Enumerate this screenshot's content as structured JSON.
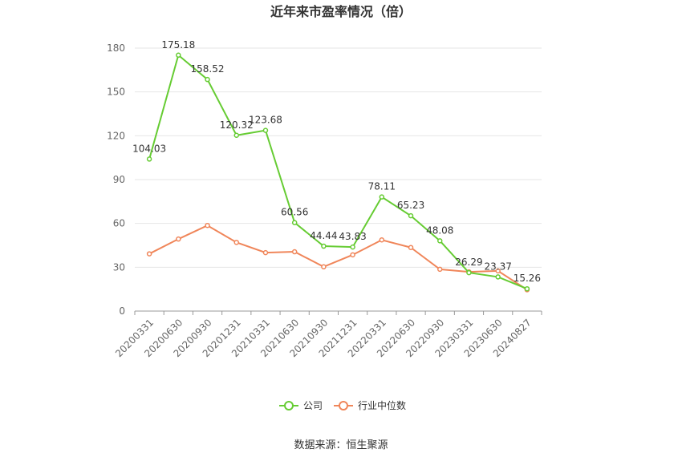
{
  "chart_data": {
    "type": "line",
    "title": "近年来市盈率情况（倍）",
    "categories": [
      "20200331",
      "20200630",
      "20200930",
      "20201231",
      "20210331",
      "20210630",
      "20210930",
      "20211231",
      "20220331",
      "20220630",
      "20220930",
      "20230331",
      "20230630",
      "20240827"
    ],
    "series": [
      {
        "name": "公司",
        "color": "#66cc33",
        "values": [
          104.03,
          175.18,
          158.52,
          120.32,
          123.68,
          60.56,
          44.44,
          43.83,
          78.11,
          65.23,
          48.08,
          26.29,
          23.37,
          15.26
        ],
        "labeled": true
      },
      {
        "name": "行业中位数",
        "color": "#f0865a",
        "values": [
          39.2,
          49.3,
          58.6,
          47.0,
          40.0,
          40.6,
          30.3,
          38.5,
          48.7,
          43.5,
          28.6,
          26.8,
          27.5,
          14.6
        ],
        "labeled": false
      }
    ],
    "yticks": [
      0,
      30,
      60,
      90,
      120,
      150,
      180
    ],
    "ylim": [
      0,
      180
    ],
    "grid": true,
    "legend_position": "bottom"
  },
  "source": "数据来源：恒生聚源"
}
